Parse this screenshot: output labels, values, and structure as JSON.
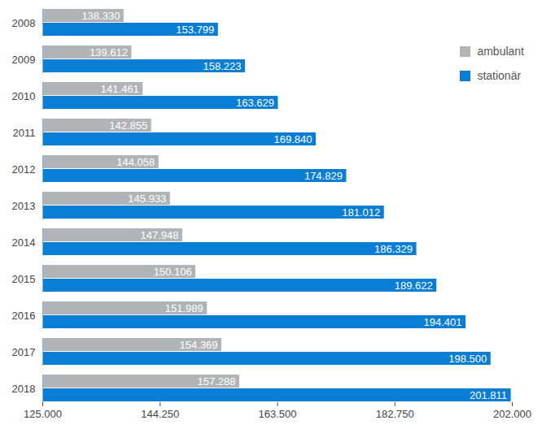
{
  "chart_data": {
    "type": "bar",
    "orientation": "horizontal",
    "data_labels": true,
    "grid": false,
    "legend": "upper right",
    "categories": [
      "2008",
      "2009",
      "2010",
      "2011",
      "2012",
      "2013",
      "2014",
      "2015",
      "2016",
      "2017",
      "2018"
    ],
    "series": [
      {
        "name": "ambulant",
        "color": "#b1b4b7",
        "values": [
          138330,
          139612,
          141461,
          142855,
          144058,
          145933,
          147948,
          150106,
          151989,
          154369,
          157288
        ],
        "value_labels": [
          "138.330",
          "139.612",
          "141.461",
          "142.855",
          "144.058",
          "145.933",
          "147.948",
          "150.106",
          "151.989",
          "154.369",
          "157.288"
        ]
      },
      {
        "name": "stationär",
        "color": "#0a7dd5",
        "values": [
          153799,
          158223,
          163629,
          169840,
          174829,
          181012,
          186329,
          189622,
          194401,
          198500,
          201811
        ],
        "value_labels": [
          "153.799",
          "158.223",
          "163.629",
          "169.840",
          "174.829",
          "181.012",
          "186.329",
          "189.622",
          "194.401",
          "198.500",
          "201.811"
        ]
      }
    ],
    "xlim": [
      125000,
      202000
    ],
    "xticks": [
      {
        "value": 125000,
        "label": "125.000"
      },
      {
        "value": 144250,
        "label": "144.250"
      },
      {
        "value": 163500,
        "label": "163.500"
      },
      {
        "value": 182750,
        "label": "182.750"
      },
      {
        "value": 202000,
        "label": "202.000"
      }
    ]
  }
}
